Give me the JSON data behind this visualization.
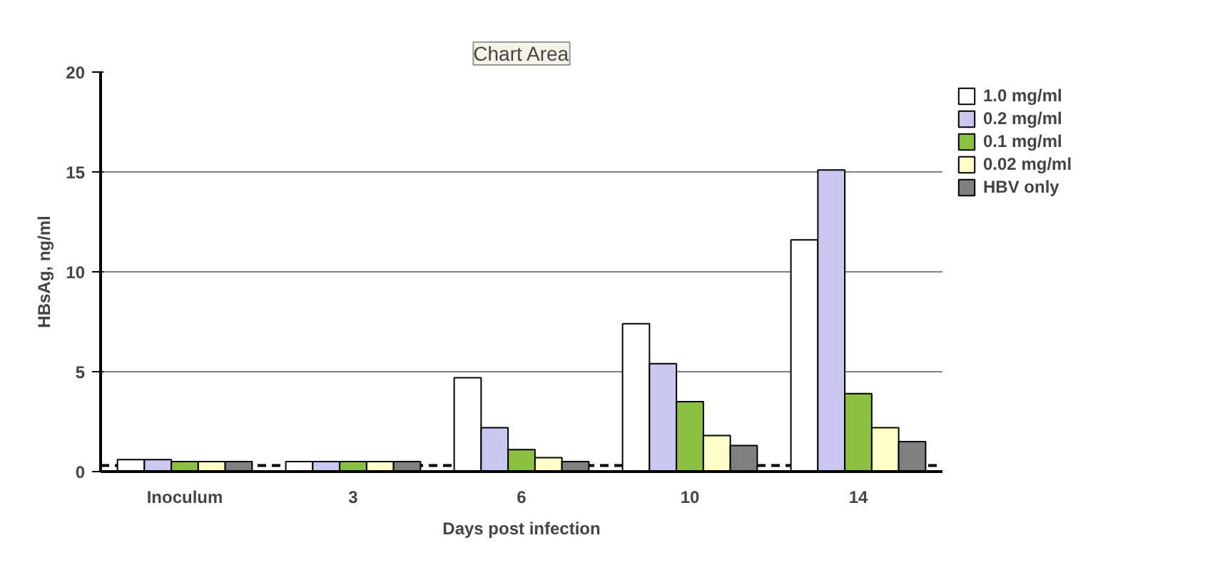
{
  "chart_data": {
    "type": "bar",
    "xlabel": "Days post infection",
    "ylabel": "HBsAg, ng/ml",
    "categories": [
      "Inoculum",
      "3",
      "6",
      "10",
      "14"
    ],
    "series": [
      {
        "name": "1.0 mg/ml",
        "color": "#ffffff",
        "values": [
          0.6,
          0.5,
          4.7,
          7.4,
          11.6
        ]
      },
      {
        "name": "0.2 mg/ml",
        "color": "#c8c8f0",
        "values": [
          0.6,
          0.5,
          2.2,
          5.4,
          15.1
        ]
      },
      {
        "name": "0.1 mg/ml",
        "color": "#8cc040",
        "values": [
          0.5,
          0.5,
          1.1,
          3.5,
          3.9
        ]
      },
      {
        "name": "0.02 mg/ml",
        "color": "#ffffc8",
        "values": [
          0.5,
          0.5,
          0.7,
          1.8,
          2.2
        ]
      },
      {
        "name": "HBV only",
        "color": "#808080",
        "values": [
          0.5,
          0.5,
          0.5,
          1.3,
          1.5
        ]
      }
    ],
    "ylim": [
      0,
      20
    ],
    "yticks": [
      0,
      5,
      10,
      15,
      20
    ],
    "grid": "y",
    "legend": "right",
    "ref_lines": [
      {
        "axis": "y",
        "value": 0.3,
        "label": null,
        "color": "#000000",
        "line_style": "dashed"
      }
    ],
    "annotations": [
      "Chart Area"
    ]
  }
}
